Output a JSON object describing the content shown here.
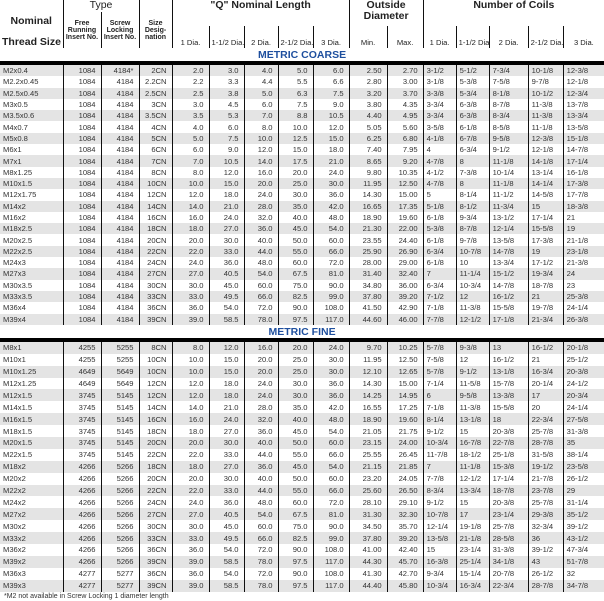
{
  "header": {
    "type": "Type",
    "q_length": "\"Q\" Nominal Length",
    "outside_diameter": "Outside Diameter",
    "coils": "Number of Coils",
    "nominal": "Nominal",
    "thread_size": "Thread Size",
    "free_running": "Free Running Insert No.",
    "screw_locking": "Screw Locking Insert No.",
    "size_designation": "Size Desig- nation",
    "length_cols": [
      "1 Dia.",
      "1-1/2 Dia.",
      "2 Dia.",
      "2-1/2 Dia.",
      "3 Dia."
    ],
    "min": "Min.",
    "max": "Max.",
    "coil_cols": [
      "1 Dia.",
      "1-1/2 Dia.",
      "2 Dia.",
      "2-1/2 Dia.",
      "3 Dia."
    ]
  },
  "colors": {
    "section_title": "#1e4f9e",
    "row_shade": "#e4e4e4"
  },
  "coarse": {
    "title": "METRIC COARSE",
    "rows": [
      [
        "M2x0.4",
        "1084",
        "4184*",
        "2CN",
        "2.0",
        "3.0",
        "4.0",
        "5.0",
        "6.0",
        "2.50",
        "2.70",
        "3-1/2",
        "5-1/2",
        "7-3/4",
        "10-1/8",
        "12-3/8"
      ],
      [
        "M2.2x0.45",
        "1084",
        "4184",
        "2.2CN",
        "2.2",
        "3.3",
        "4.4",
        "5.5",
        "6.6",
        "2.80",
        "3.00",
        "3-1/8",
        "5-3/8",
        "7-5/8",
        "9-7/8",
        "12-1/8"
      ],
      [
        "M2.5x0.45",
        "1084",
        "4184",
        "2.5CN",
        "2.5",
        "3.8",
        "5.0",
        "6.3",
        "7.5",
        "3.20",
        "3.70",
        "3-3/8",
        "5-3/4",
        "8-1/8",
        "10-1/2",
        "12-3/4"
      ],
      [
        "M3x0.5",
        "1084",
        "4184",
        "3CN",
        "3.0",
        "4.5",
        "6.0",
        "7.5",
        "9.0",
        "3.80",
        "4.35",
        "3-3/4",
        "6-3/8",
        "8-7/8",
        "11-3/8",
        "13-7/8"
      ],
      [
        "M3.5x0.6",
        "1084",
        "4184",
        "3.5CN",
        "3.5",
        "5.3",
        "7.0",
        "8.8",
        "10.5",
        "4.40",
        "4.95",
        "3-3/4",
        "6-3/8",
        "8-3/4",
        "11-3/8",
        "13-3/4"
      ],
      [
        "M4x0.7",
        "1084",
        "4184",
        "4CN",
        "4.0",
        "6.0",
        "8.0",
        "10.0",
        "12.0",
        "5.05",
        "5.60",
        "3-5/8",
        "6-1/8",
        "8-5/8",
        "11-1/8",
        "13-5/8"
      ],
      [
        "M5x0.8",
        "1084",
        "4184",
        "5CN",
        "5.0",
        "7.5",
        "10.0",
        "12.5",
        "15.0",
        "6.25",
        "6.80",
        "4-1/8",
        "6-7/8",
        "9-5/8",
        "12-3/8",
        "15-1/8"
      ],
      [
        "M6x1",
        "1084",
        "4184",
        "6CN",
        "6.0",
        "9.0",
        "12.0",
        "15.0",
        "18.0",
        "7.40",
        "7.95",
        "4",
        "6-3/4",
        "9-1/2",
        "12-1/8",
        "14-7/8"
      ],
      [
        "M7x1",
        "1084",
        "4184",
        "7CN",
        "7.0",
        "10.5",
        "14.0",
        "17.5",
        "21.0",
        "8.65",
        "9.20",
        "4-7/8",
        "8",
        "11-1/8",
        "14-1/8",
        "17-1/4"
      ],
      [
        "M8x1.25",
        "1084",
        "4184",
        "8CN",
        "8.0",
        "12.0",
        "16.0",
        "20.0",
        "24.0",
        "9.80",
        "10.35",
        "4-1/2",
        "7-3/8",
        "10-1/4",
        "13-1/4",
        "16-1/8"
      ],
      [
        "M10x1.5",
        "1084",
        "4184",
        "10CN",
        "10.0",
        "15.0",
        "20.0",
        "25.0",
        "30.0",
        "11.95",
        "12.50",
        "4-7/8",
        "8",
        "11-1/8",
        "14-1/4",
        "17-3/8"
      ],
      [
        "M12x1.75",
        "1084",
        "4184",
        "12CN",
        "12.0",
        "18.0",
        "24.0",
        "30.0",
        "36.0",
        "14.30",
        "15.00",
        "5",
        "8-1/4",
        "11-1/2",
        "14-5/8",
        "17-7/8"
      ],
      [
        "M14x2",
        "1084",
        "4184",
        "14CN",
        "14.0",
        "21.0",
        "28.0",
        "35.0",
        "42.0",
        "16.65",
        "17.35",
        "5-1/8",
        "8-1/2",
        "11-3/4",
        "15",
        "18-3/8"
      ],
      [
        "M16x2",
        "1084",
        "4184",
        "16CN",
        "16.0",
        "24.0",
        "32.0",
        "40.0",
        "48.0",
        "18.90",
        "19.60",
        "6-1/8",
        "9-3/4",
        "13-1/2",
        "17-1/4",
        "21"
      ],
      [
        "M18x2.5",
        "1084",
        "4184",
        "18CN",
        "18.0",
        "27.0",
        "36.0",
        "45.0",
        "54.0",
        "21.30",
        "22.00",
        "5-3/8",
        "8-7/8",
        "12-1/4",
        "15-5/8",
        "19"
      ],
      [
        "M20x2.5",
        "1084",
        "4184",
        "20CN",
        "20.0",
        "30.0",
        "40.0",
        "50.0",
        "60.0",
        "23.55",
        "24.40",
        "6-1/8",
        "9-7/8",
        "13-5/8",
        "17-3/8",
        "21-1/8"
      ],
      [
        "M22x2.5",
        "1084",
        "4184",
        "22CN",
        "22.0",
        "33.0",
        "44.0",
        "55.0",
        "66.0",
        "25.90",
        "26.90",
        "6-3/4",
        "10-7/8",
        "14-7/8",
        "19",
        "23-1/8"
      ],
      [
        "M24x3",
        "1084",
        "4184",
        "24CN",
        "24.0",
        "36.0",
        "48.0",
        "60.0",
        "72.0",
        "28.00",
        "29.00",
        "6-1/8",
        "10",
        "13-3/4",
        "17-1/2",
        "21-3/8"
      ],
      [
        "M27x3",
        "1084",
        "4184",
        "27CN",
        "27.0",
        "40.5",
        "54.0",
        "67.5",
        "81.0",
        "31.40",
        "32.40",
        "7",
        "11-1/4",
        "15-1/2",
        "19-3/4",
        "24"
      ],
      [
        "M30x3.5",
        "1084",
        "4184",
        "30CN",
        "30.0",
        "45.0",
        "60.0",
        "75.0",
        "90.0",
        "34.80",
        "36.00",
        "6-3/4",
        "10-3/4",
        "14-7/8",
        "18-7/8",
        "23"
      ],
      [
        "M33x3.5",
        "1084",
        "4184",
        "33CN",
        "33.0",
        "49.5",
        "66.0",
        "82.5",
        "99.0",
        "37.80",
        "39.20",
        "7-1/2",
        "12",
        "16-1/2",
        "21",
        "25-3/8"
      ],
      [
        "M36x4",
        "1084",
        "4184",
        "36CN",
        "36.0",
        "54.0",
        "72.0",
        "90.0",
        "108.0",
        "41.50",
        "42.90",
        "7-1/8",
        "11-3/8",
        "15-5/8",
        "19-7/8",
        "24-1/4"
      ],
      [
        "M39x4",
        "1084",
        "4184",
        "39CN",
        "39.0",
        "58.5",
        "78.0",
        "97.5",
        "117.0",
        "44.60",
        "46.00",
        "7-7/8",
        "12-1/2",
        "17-1/8",
        "21-3/4",
        "26-3/8"
      ]
    ]
  },
  "fine": {
    "title": "METRIC FINE",
    "rows": [
      [
        "M8x1",
        "4255",
        "5255",
        "8CN",
        "8.0",
        "12.0",
        "16.0",
        "20.0",
        "24.0",
        "9.70",
        "10.25",
        "5-7/8",
        "9-3/8",
        "13",
        "16-1/2",
        "20-1/8"
      ],
      [
        "M10x1",
        "4255",
        "5255",
        "10CN",
        "10.0",
        "15.0",
        "20.0",
        "25.0",
        "30.0",
        "11.95",
        "12.50",
        "7-5/8",
        "12",
        "16-1/2",
        "21",
        "25-1/2"
      ],
      [
        "M10x1.25",
        "4649",
        "5649",
        "10CN",
        "10.0",
        "15.0",
        "20.0",
        "25.0",
        "30.0",
        "12.10",
        "12.65",
        "5-7/8",
        "9-1/2",
        "13-1/8",
        "16-3/4",
        "20-3/8"
      ],
      [
        "M12x1.25",
        "4649",
        "5649",
        "12CN",
        "12.0",
        "18.0",
        "24.0",
        "30.0",
        "36.0",
        "14.30",
        "15.00",
        "7-1/4",
        "11-5/8",
        "15-7/8",
        "20-1/4",
        "24-1/2"
      ],
      [
        "M12x1.5",
        "3745",
        "5145",
        "12CN",
        "12.0",
        "18.0",
        "24.0",
        "30.0",
        "36.0",
        "14.25",
        "14.95",
        "6",
        "9-5/8",
        "13-3/8",
        "17",
        "20-3/4"
      ],
      [
        "M14x1.5",
        "3745",
        "5145",
        "14CN",
        "14.0",
        "21.0",
        "28.0",
        "35.0",
        "42.0",
        "16.55",
        "17.25",
        "7-1/8",
        "11-3/8",
        "15-5/8",
        "20",
        "24-1/4"
      ],
      [
        "M16x1.5",
        "3745",
        "5145",
        "16CN",
        "16.0",
        "24.0",
        "32.0",
        "40.0",
        "48.0",
        "18.90",
        "19.60",
        "8-1/4",
        "13-1/8",
        "18",
        "22-3/4",
        "27-5/8"
      ],
      [
        "M18x1.5",
        "3745",
        "5145",
        "18CN",
        "18.0",
        "27.0",
        "36.0",
        "45.0",
        "54.0",
        "21.05",
        "21.75",
        "9-1/2",
        "15",
        "20-3/8",
        "25-7/8",
        "31-3/8"
      ],
      [
        "M20x1.5",
        "3745",
        "5145",
        "20CN",
        "20.0",
        "30.0",
        "40.0",
        "50.0",
        "60.0",
        "23.15",
        "24.00",
        "10-3/4",
        "16-7/8",
        "22-7/8",
        "28-7/8",
        "35"
      ],
      [
        "M22x1.5",
        "3745",
        "5145",
        "22CN",
        "22.0",
        "33.0",
        "44.0",
        "55.0",
        "66.0",
        "25.55",
        "26.45",
        "11-7/8",
        "18-1/2",
        "25-1/8",
        "31-5/8",
        "38-1/4"
      ],
      [
        "M18x2",
        "4266",
        "5266",
        "18CN",
        "18.0",
        "27.0",
        "36.0",
        "45.0",
        "54.0",
        "21.15",
        "21.85",
        "7",
        "11-1/8",
        "15-3/8",
        "19-1/2",
        "23-5/8"
      ],
      [
        "M20x2",
        "4266",
        "5266",
        "20CN",
        "20.0",
        "30.0",
        "40.0",
        "50.0",
        "60.0",
        "23.20",
        "24.05",
        "7-7/8",
        "12-1/2",
        "17-1/4",
        "21-7/8",
        "26-1/2"
      ],
      [
        "M22x2",
        "4266",
        "5266",
        "22CN",
        "22.0",
        "33.0",
        "44.0",
        "55.0",
        "66.0",
        "25.60",
        "26.50",
        "8-3/4",
        "13-3/4",
        "18-7/8",
        "23-7/8",
        "29"
      ],
      [
        "M24x2",
        "4266",
        "5266",
        "24CN",
        "24.0",
        "36.0",
        "48.0",
        "60.0",
        "72.0",
        "28.10",
        "29.10",
        "9-1/2",
        "15",
        "20-3/8",
        "25-7/8",
        "31-1/4"
      ],
      [
        "M27x2",
        "4266",
        "5266",
        "27CN",
        "27.0",
        "40.5",
        "54.0",
        "67.5",
        "81.0",
        "31.30",
        "32.30",
        "10-7/8",
        "17",
        "23-1/4",
        "29-3/8",
        "35-1/2"
      ],
      [
        "M30x2",
        "4266",
        "5266",
        "30CN",
        "30.0",
        "45.0",
        "60.0",
        "75.0",
        "90.0",
        "34.50",
        "35.70",
        "12-1/4",
        "19-1/8",
        "25-7/8",
        "32-3/4",
        "39-1/2"
      ],
      [
        "M33x2",
        "4266",
        "5266",
        "33CN",
        "33.0",
        "49.5",
        "66.0",
        "82.5",
        "99.0",
        "37.80",
        "39.20",
        "13-5/8",
        "21-1/8",
        "28-5/8",
        "36",
        "43-1/2"
      ],
      [
        "M36x2",
        "4266",
        "5266",
        "36CN",
        "36.0",
        "54.0",
        "72.0",
        "90.0",
        "108.0",
        "41.00",
        "42.40",
        "15",
        "23-1/4",
        "31-3/8",
        "39-1/2",
        "47-3/4"
      ],
      [
        "M39x2",
        "4266",
        "5266",
        "39CN",
        "39.0",
        "58.5",
        "78.0",
        "97.5",
        "117.0",
        "44.30",
        "45.70",
        "16-3/8",
        "25-1/4",
        "34-1/8",
        "43",
        "51-7/8"
      ],
      [
        "M36x3",
        "4277",
        "5277",
        "36CN",
        "36.0",
        "54.0",
        "72.0",
        "90.0",
        "108.0",
        "41.30",
        "42.70",
        "9-3/4",
        "15-1/4",
        "20-7/8",
        "26-1/2",
        "32"
      ],
      [
        "M39x3",
        "4277",
        "5277",
        "39CN",
        "39.0",
        "58.5",
        "78.0",
        "97.5",
        "117.0",
        "44.40",
        "45.80",
        "10-3/4",
        "16-3/4",
        "22-3/4",
        "28-7/8",
        "34-7/8"
      ]
    ]
  },
  "footnote": "*M2 not available in Screw Locking 1 diameter length"
}
